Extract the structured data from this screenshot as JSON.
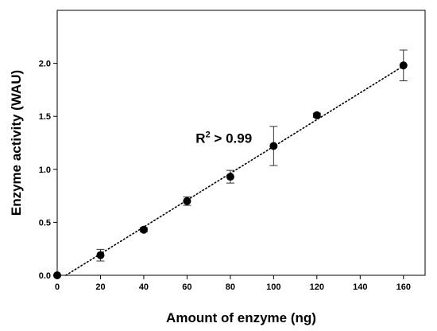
{
  "chart_data": {
    "type": "scatter",
    "title": "",
    "xlabel": "Amount of enzyme (ng)",
    "ylabel": "Enzyme activity (WAU)",
    "xlim": [
      0,
      170
    ],
    "ylim": [
      0,
      2.5
    ],
    "x_ticks": [
      0,
      20,
      40,
      60,
      80,
      100,
      120,
      140,
      160
    ],
    "y_ticks": [
      0.0,
      0.5,
      1.0,
      1.5,
      2.0
    ],
    "x_tick_labels": [
      "0",
      "20",
      "40",
      "60",
      "80",
      "100",
      "120",
      "140",
      "160"
    ],
    "y_tick_labels": [
      "0.0",
      "0.5",
      "1.0",
      "1.5",
      "2.0"
    ],
    "grid": false,
    "legend": "none",
    "series": [
      {
        "x": [
          0,
          20,
          40,
          60,
          80,
          100,
          120,
          160
        ],
        "y": [
          0.0,
          0.19,
          0.43,
          0.7,
          0.93,
          1.22,
          1.51,
          1.98
        ],
        "error": [
          0.0,
          0.055,
          0.02,
          0.04,
          0.06,
          0.185,
          0.02,
          0.145
        ],
        "marker": "circle",
        "color": "#000000"
      }
    ],
    "trendline": {
      "style": "dotted",
      "color": "#000000",
      "x": [
        4,
        160
      ],
      "y": [
        0.0,
        1.975
      ]
    },
    "annotations": [
      {
        "text_base": "R",
        "text_sup": "2",
        "text_rest": " > 0.99",
        "x": 64,
        "y": 1.25
      }
    ]
  }
}
